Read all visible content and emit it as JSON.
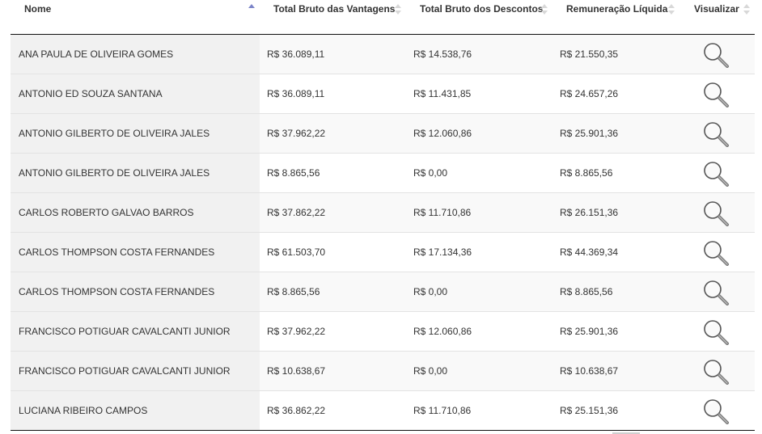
{
  "table": {
    "headers": {
      "nome": "Nome",
      "vantagens": "Total Bruto das Vantagens",
      "descontos": "Total Bruto dos Descontos",
      "liquida": "Remuneração Líquida",
      "visualizar": "Visualizar"
    },
    "sort": {
      "column": "Nome",
      "direction": "ascending"
    },
    "rows": [
      {
        "nome": "ANA PAULA DE OLIVEIRA GOMES",
        "vantagens": "R$ 36.089,11",
        "descontos": "R$ 14.538,76",
        "liquida": "R$ 21.550,35"
      },
      {
        "nome": "ANTONIO ED SOUZA SANTANA",
        "vantagens": "R$ 36.089,11",
        "descontos": "R$ 11.431,85",
        "liquida": "R$ 24.657,26"
      },
      {
        "nome": "ANTONIO GILBERTO DE OLIVEIRA JALES",
        "vantagens": "R$ 37.962,22",
        "descontos": "R$ 12.060,86",
        "liquida": "R$ 25.901,36"
      },
      {
        "nome": "ANTONIO GILBERTO DE OLIVEIRA JALES",
        "vantagens": "R$ 8.865,56",
        "descontos": "R$ 0,00",
        "liquida": "R$ 8.865,56"
      },
      {
        "nome": "CARLOS ROBERTO GALVAO BARROS",
        "vantagens": "R$ 37.862,22",
        "descontos": "R$ 11.710,86",
        "liquida": "R$ 26.151,36"
      },
      {
        "nome": "CARLOS THOMPSON COSTA FERNANDES",
        "vantagens": "R$ 61.503,70",
        "descontos": "R$ 17.134,36",
        "liquida": "R$ 44.369,34"
      },
      {
        "nome": "CARLOS THOMPSON COSTA FERNANDES",
        "vantagens": "R$ 8.865,56",
        "descontos": "R$ 0,00",
        "liquida": "R$ 8.865,56"
      },
      {
        "nome": "FRANCISCO POTIGUAR CAVALCANTI JUNIOR",
        "vantagens": "R$ 37.962,22",
        "descontos": "R$ 12.060,86",
        "liquida": "R$ 25.901,36"
      },
      {
        "nome": "FRANCISCO POTIGUAR CAVALCANTI JUNIOR",
        "vantagens": "R$ 10.638,67",
        "descontos": "R$ 0,00",
        "liquida": "R$ 10.638,67"
      },
      {
        "nome": "LUCIANA RIBEIRO CAMPOS",
        "vantagens": "R$ 36.862,22",
        "descontos": "R$ 11.710,86",
        "liquida": "R$ 25.151,36"
      }
    ],
    "row_icon": "magnifier-icon"
  },
  "colors": {
    "sort_active": "#7b84c8",
    "sort_inactive": "#d8d8d8",
    "name_column_bg": "#f1f1f1",
    "header_rule": "#111111"
  }
}
